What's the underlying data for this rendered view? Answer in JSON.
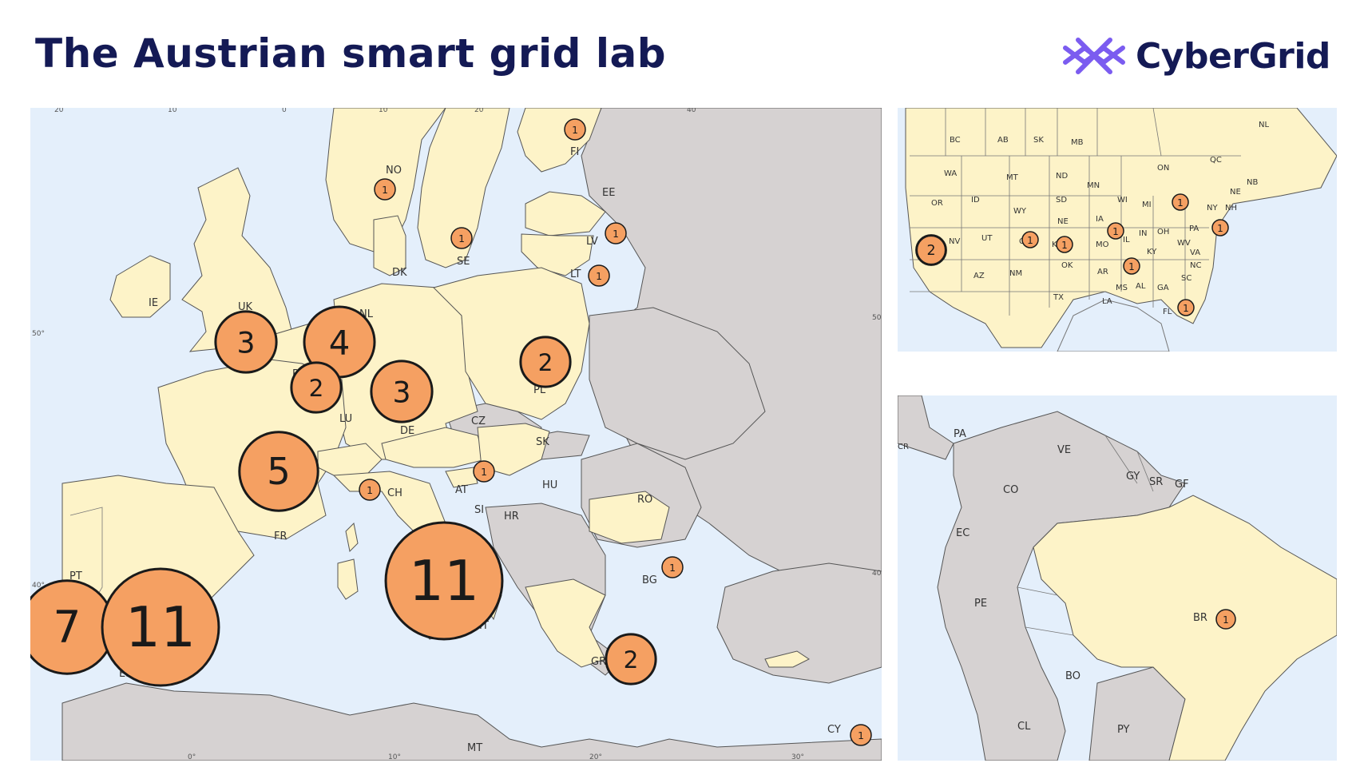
{
  "title": "The Austrian smart grid lab",
  "brand": {
    "name": "CyberGrid",
    "logo_icon": "crossed-lattice-logo",
    "logo_color": "#7b5cf0"
  },
  "colors": {
    "bubble_fill": "#f5a062",
    "bubble_stroke": "#1a1a1a",
    "participant_land": "#fdf3c8",
    "other_land": "#d6d2d2",
    "water": "#e4effb",
    "title": "#141a55"
  },
  "europe": {
    "ticks": {
      "top": [
        "20",
        "10",
        "0",
        "10",
        "20",
        "40"
      ],
      "left": [
        "50°",
        "40°"
      ],
      "right": [
        "50",
        "40"
      ],
      "bottom": [
        "0°",
        "10°",
        "20°",
        "30°"
      ]
    },
    "labels": {
      "ie": "IE",
      "uk": "UK",
      "no": "NO",
      "se": "SE",
      "fi": "FI",
      "ee": "EE",
      "lv": "LV",
      "lt": "LT",
      "dk": "DK",
      "nl": "NL",
      "be": "BE",
      "lu": "LU",
      "de": "DE",
      "pl": "PL",
      "cz": "CZ",
      "sk": "SK",
      "fr": "FR",
      "ch": "CH",
      "at": "AT",
      "hu": "HU",
      "ro": "RO",
      "si": "SI",
      "hr": "HR",
      "bg": "BG",
      "pt": "PT",
      "es": "ES",
      "it": "IT",
      "gr": "GR",
      "mt": "MT",
      "cy": "CY"
    },
    "counts": {
      "uk": "3",
      "nl": "4",
      "be": "2",
      "de": "3",
      "pl": "2",
      "fr": "5",
      "ch": "1",
      "at": "1",
      "it": "11",
      "pt": "7",
      "es": "11",
      "no": "1",
      "se": "1",
      "fi": "1",
      "lv": "1",
      "lt": "1",
      "bg": "1",
      "gr": "2",
      "cy": "1"
    }
  },
  "north_america": {
    "labels": {
      "bc": "BC",
      "ab": "AB",
      "sk": "SK",
      "mb": "MB",
      "on": "ON",
      "qc": "QC",
      "nl": "NL",
      "nb": "NB",
      "ne_ca": "NE",
      "wa": "WA",
      "mt": "MT",
      "nd": "ND",
      "mn": "MN",
      "or": "OR",
      "id": "ID",
      "wy": "WY",
      "sd": "SD",
      "wi": "WI",
      "mi": "MI",
      "ny": "NY",
      "nh": "NH",
      "ia": "IA",
      "ne": "NE",
      "ca": "CA",
      "nv": "NV",
      "ut": "UT",
      "co": "CO",
      "ks": "KS",
      "mo": "MO",
      "il": "IL",
      "in": "IN",
      "oh": "OH",
      "pa": "PA",
      "wv": "WV",
      "va": "VA",
      "ky": "KY",
      "ok": "OK",
      "tn": "TN",
      "nc": "NC",
      "az": "AZ",
      "nm": "NM",
      "ar": "AR",
      "sc": "SC",
      "ms": "MS",
      "al": "AL",
      "ga": "GA",
      "tx": "TX",
      "la": "LA",
      "fl": "FL"
    },
    "counts": {
      "ca": "2",
      "co": "1",
      "ks": "1",
      "il": "1",
      "mi": "1",
      "tn": "1",
      "ny": "1",
      "fl": "1"
    }
  },
  "south_america": {
    "labels": {
      "cr": "CR",
      "pa": "PA",
      "ve": "VE",
      "gy": "GY",
      "sr": "SR",
      "gf": "GF",
      "co": "CO",
      "ec": "EC",
      "pe": "PE",
      "br": "BR",
      "bo": "BO",
      "py": "PY",
      "cl": "CL"
    },
    "counts": {
      "br": "1"
    }
  }
}
